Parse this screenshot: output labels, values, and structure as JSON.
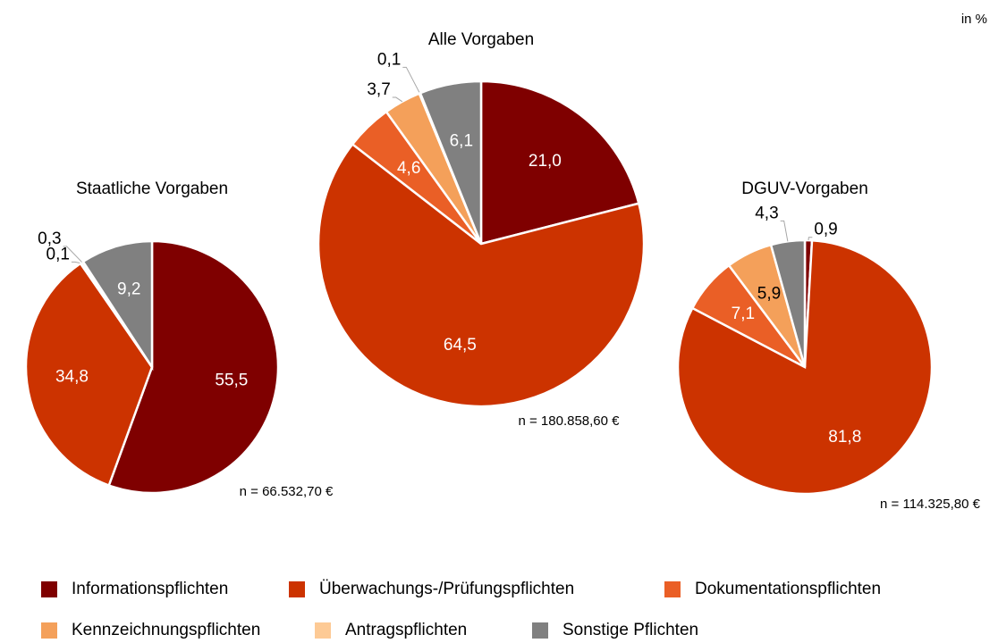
{
  "chart_data": [
    {
      "type": "pie",
      "title": "Staatliche Vorgaben",
      "note": "n = 66.532,70 €",
      "categories": [
        "Informationspflichten",
        "Überwachungs-/Prüfungspflichten",
        "Dokumentationspflichten",
        "Kennzeichnungspflichten",
        "Antragspflichten",
        "Sonstige Pflichten"
      ],
      "values": [
        55.5,
        34.8,
        0.1,
        0.3,
        null,
        9.2
      ],
      "value_labels": [
        "55,5",
        "34,8",
        "0,1",
        "0,3",
        null,
        "9,2"
      ],
      "colors": [
        "#7f0000",
        "#cc3300",
        "#ea5f26",
        "#f4a05a",
        "#fdca95",
        "#808080"
      ]
    },
    {
      "type": "pie",
      "title": "Alle Vorgaben",
      "note": "n = 180.858,60 €",
      "categories": [
        "Informationspflichten",
        "Überwachungs-/Prüfungspflichten",
        "Dokumentationspflichten",
        "Kennzeichnungspflichten",
        "Antragspflichten",
        "Sonstige Pflichten"
      ],
      "values": [
        21.0,
        64.5,
        4.6,
        3.7,
        0.1,
        6.1
      ],
      "value_labels": [
        "21,0",
        "64,5",
        "4,6",
        "3,7",
        "0,1",
        "6,1"
      ],
      "colors": [
        "#7f0000",
        "#cc3300",
        "#ea5f26",
        "#f4a05a",
        "#fdca95",
        "#808080"
      ]
    },
    {
      "type": "pie",
      "title": "DGUV-Vorgaben",
      "note": "n = 114.325,80 €",
      "categories": [
        "Informationspflichten",
        "Überwachungs-/Prüfungspflichten",
        "Dokumentationspflichten",
        "Kennzeichnungspflichten",
        "Antragspflichten",
        "Sonstige Pflichten"
      ],
      "values": [
        0.9,
        81.8,
        7.1,
        5.9,
        null,
        4.3
      ],
      "value_labels": [
        "0,9",
        "81,8",
        "7,1",
        "5,9",
        null,
        "4,3"
      ],
      "colors": [
        "#7f0000",
        "#cc3300",
        "#ea5f26",
        "#f4a05a",
        "#fdca95",
        "#808080"
      ]
    }
  ],
  "unit": "in %"
}
